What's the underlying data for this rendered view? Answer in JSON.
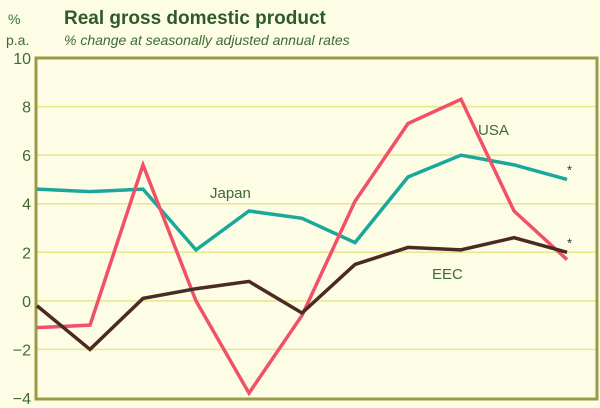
{
  "chart_data": {
    "type": "line",
    "title": "Real gross domestic product",
    "subtitle": "% change at seasonally adjusted annual rates",
    "ylabel_line1": "%",
    "ylabel_line2": "p.a.",
    "ylim": [
      -4,
      10
    ],
    "yticks": [
      -4,
      -2,
      0,
      2,
      4,
      6,
      8,
      10
    ],
    "ytick_labels": [
      "−4",
      "−2",
      "0",
      "2",
      "4",
      "6",
      "8",
      "10"
    ],
    "grid": true,
    "x": [
      0,
      1,
      2,
      3,
      4,
      5,
      6,
      7,
      8,
      9,
      10
    ],
    "series": [
      {
        "name": "Japan",
        "color": "#1aa89a",
        "values": [
          4.6,
          4.5,
          4.6,
          2.1,
          3.7,
          3.4,
          2.4,
          5.1,
          6.0,
          5.6,
          5.0
        ],
        "end_marker": "*"
      },
      {
        "name": "USA",
        "color": "#f0506a",
        "values": [
          -1.1,
          -1.0,
          5.6,
          0.0,
          -3.8,
          -0.6,
          4.1,
          7.3,
          8.3,
          3.7,
          1.7
        ],
        "end_marker": ""
      },
      {
        "name": "EEC",
        "color": "#4a2a22",
        "values": [
          -0.2,
          -2.0,
          0.1,
          0.5,
          0.8,
          -0.5,
          1.5,
          2.2,
          2.1,
          2.6,
          2.0
        ],
        "end_marker": "*"
      }
    ]
  }
}
